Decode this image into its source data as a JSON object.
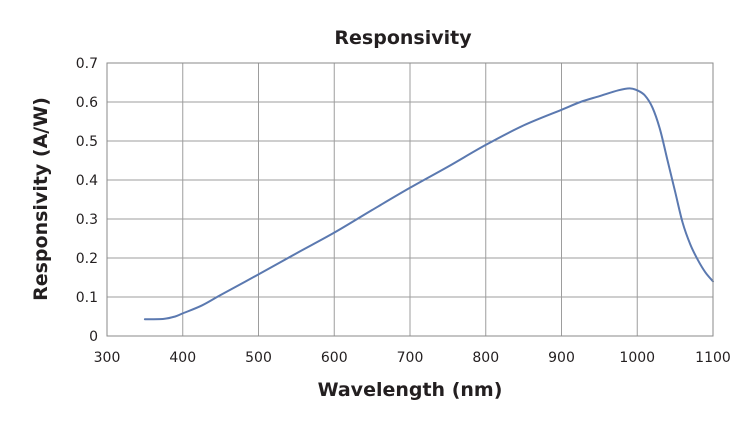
{
  "chart_data": {
    "type": "line",
    "title": "Responsivity",
    "xlabel": "Wavelength (nm)",
    "ylabel": "Responsivity  (A/W)",
    "xlim": [
      300,
      1100
    ],
    "ylim": [
      0,
      0.7
    ],
    "grid": true,
    "legend": "none",
    "x_ticks": [
      300,
      400,
      500,
      600,
      700,
      800,
      900,
      1000,
      1100
    ],
    "x_tick_labels": [
      "300",
      "400",
      "500",
      "600",
      "700",
      "800",
      "900",
      "1000",
      "1100"
    ],
    "y_ticks": [
      0,
      0.1,
      0.2,
      0.3,
      0.4,
      0.5,
      0.6,
      0.7
    ],
    "y_tick_labels": [
      "0",
      "0.1",
      "0.2",
      "0.3",
      "0.4",
      "0.5",
      "0.6",
      "0.7"
    ],
    "series": [
      {
        "name": "Responsivity",
        "color": "#5b79b0",
        "x": [
          350,
          375,
          390,
          400,
          425,
          450,
          500,
          550,
          600,
          650,
          700,
          750,
          800,
          850,
          900,
          925,
          950,
          975,
          990,
          1000,
          1010,
          1020,
          1030,
          1040,
          1050,
          1060,
          1070,
          1080,
          1090,
          1100
        ],
        "y": [
          0.043,
          0.044,
          0.05,
          0.058,
          0.078,
          0.105,
          0.158,
          0.212,
          0.265,
          0.323,
          0.38,
          0.434,
          0.49,
          0.54,
          0.58,
          0.6,
          0.615,
          0.63,
          0.635,
          0.63,
          0.617,
          0.586,
          0.53,
          0.45,
          0.37,
          0.29,
          0.235,
          0.195,
          0.163,
          0.14
        ]
      }
    ]
  }
}
